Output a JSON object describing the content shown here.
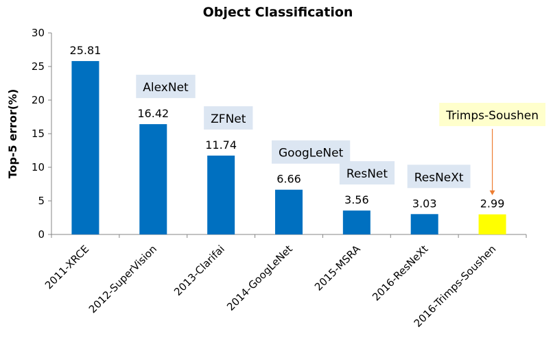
{
  "chart_data": {
    "type": "bar",
    "title": "Object Classification",
    "xlabel": "",
    "ylabel": "Top-5 error(%)",
    "ylim": [
      0,
      30
    ],
    "yticks": [
      0,
      5,
      10,
      15,
      20,
      25,
      30
    ],
    "grid": false,
    "categories": [
      "2011-XRCE",
      "2012-SuperVision",
      "2013-Clarifai",
      "2014-GoogLeNet",
      "2015-MSRA",
      "2016-ResNeXt",
      "2016-Trimps-Soushen"
    ],
    "values": [
      25.81,
      16.42,
      11.74,
      6.66,
      3.56,
      3.03,
      2.99
    ],
    "value_labels": [
      "25.81",
      "16.42",
      "11.74",
      "6.66",
      "3.56",
      "3.03",
      "2.99"
    ],
    "bar_colors": [
      "#0070c0",
      "#0070c0",
      "#0070c0",
      "#0070c0",
      "#0070c0",
      "#0070c0",
      "#ffff00"
    ],
    "annotations": [
      {
        "text": "AlexNet",
        "category_index": 1,
        "background": "#dce6f2"
      },
      {
        "text": "ZFNet",
        "category_index": 2,
        "background": "#dce6f2"
      },
      {
        "text": "GoogLeNet",
        "category_index": 3,
        "background": "#dce6f2"
      },
      {
        "text": "ResNet",
        "category_index": 4,
        "background": "#dce6f2"
      },
      {
        "text": "ResNeXt",
        "category_index": 5,
        "background": "#dce6f2"
      },
      {
        "text": "Trimps-Soushen",
        "category_index": 6,
        "background": "#ffffcc",
        "arrow": true,
        "arrow_color": "#ed7d31"
      }
    ]
  }
}
